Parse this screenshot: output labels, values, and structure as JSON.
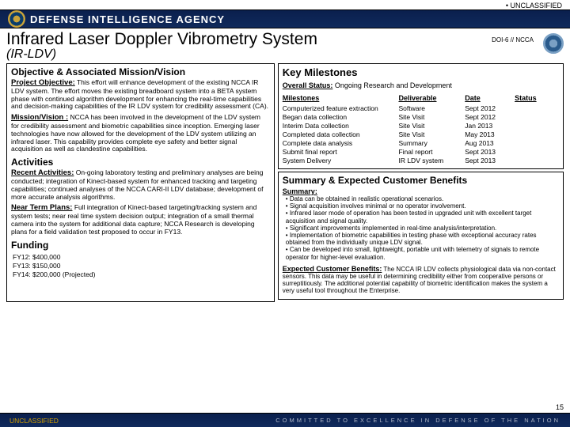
{
  "classification": "• UNCLASSIFIED",
  "agency_name": "DEFENSE INTELLIGENCE AGENCY",
  "title": "Infrared Laser Doppler Vibrometry System",
  "subtitle": "(IR-LDV)",
  "doc_code": "DOI-6 // NCCA",
  "left": {
    "objective_head": "Objective & Associated Mission/Vision",
    "proj_obj_label": "Project Objective:",
    "proj_obj_text": " This effort will enhance development of the existing NCCA IR LDV system. The effort moves the existing breadboard system into a BETA system phase with continued algorithm development for enhancing the real-time capabilities and decision-making capabilities of the IR LDV system for credibility assessment (CA).",
    "mission_label": "Mission/Vision :",
    "mission_text": " NCCA has been involved in the development of the LDV system for credibility assessment and biometric capabilities since inception. Emerging laser technologies have now allowed for the development of the LDV system utilizing an infrared laser. This capability provides complete eye safety and better signal acquisition as well as clandestine capabilities.",
    "activities_head": "Activities",
    "recent_label": "Recent Activities:",
    "recent_text": " On-going laboratory testing and preliminary analyses are being conducted; integration of Kinect-based system for enhanced tracking and targeting capabilities; continued analyses of the NCCA CARI-II LDV database; development of more accurate analysis algorithms.",
    "near_label": "Near Term Plans:",
    "near_text": " Full integration of Kinect-based targeting/tracking system and system tests; near real time system decision output; integration of a small thermal camera into the system for additional data capture; NCCA Research is developing plans for a field validation test proposed to occur in FY13.",
    "funding_head": "Funding",
    "funding_lines": [
      "FY12: $400,000",
      "FY13: $150,000",
      "FY14: $200,000 (Projected)"
    ]
  },
  "right": {
    "key_head": "Key Milestones",
    "overall_label": "Overall Status:",
    "overall_text": " Ongoing Research and Development",
    "cols": {
      "c1": "Milestones",
      "c2": "Deliverable",
      "c3": "Date",
      "c4": "Status"
    },
    "rows": [
      {
        "m": "Computerized feature extraction",
        "d": "Software",
        "t": "Sept 2012",
        "s": ""
      },
      {
        "m": "Began data collection",
        "d": "Site Visit",
        "t": "Sept 2012",
        "s": ""
      },
      {
        "m": "Interim Data collection",
        "d": "Site Visit",
        "t": "Jan   2013",
        "s": ""
      },
      {
        "m": "Completed data collection",
        "d": "Site Visit",
        "t": "May  2013",
        "s": ""
      },
      {
        "m": "Complete data analysis",
        "d": "Summary",
        "t": "Aug  2013",
        "s": ""
      },
      {
        "m": "Submit final report",
        "d": "Final report",
        "t": "Sept 2013",
        "s": ""
      },
      {
        "m": "System Delivery",
        "d": "IR LDV system",
        "t": "Sept 2013",
        "s": ""
      }
    ],
    "summary_head": "Summary & Expected Customer Benefits",
    "summary_label": "Summary:",
    "summary_bullets": [
      "• Data can be obtained in realistic operational scenarios.",
      "• Signal acquisition involves minimal or no operator involvement.",
      "• Infrared laser mode of operation has been tested in upgraded unit with excellent target acquisition and signal quality.",
      "• Significant improvements implemented in real-time analysis/interpretation.",
      "• Implementation of biometric capabilities in testing phase with exceptional accuracy rates obtained from the individually unique LDV signal.",
      "• Can be developed into small, lightweight, portable unit with telemetry of signals to remote operator for higher-level evaluation."
    ],
    "benefits_label": "Expected Customer Benefits:",
    "benefits_text": " The NCCA IR LDV collects physiological data via non-contact sensors. This data may be useful in determining credibility either from cooperative persons or surreptitiously. The additional potential capability of biometric identification makes the system a very useful tool throughout the Enterprise."
  },
  "footer": {
    "uc": "UNCLASSIFIED",
    "motto": "COMMITTED TO EXCELLENCE   IN DEFENSE OF THE NATION"
  },
  "page_num": "15"
}
